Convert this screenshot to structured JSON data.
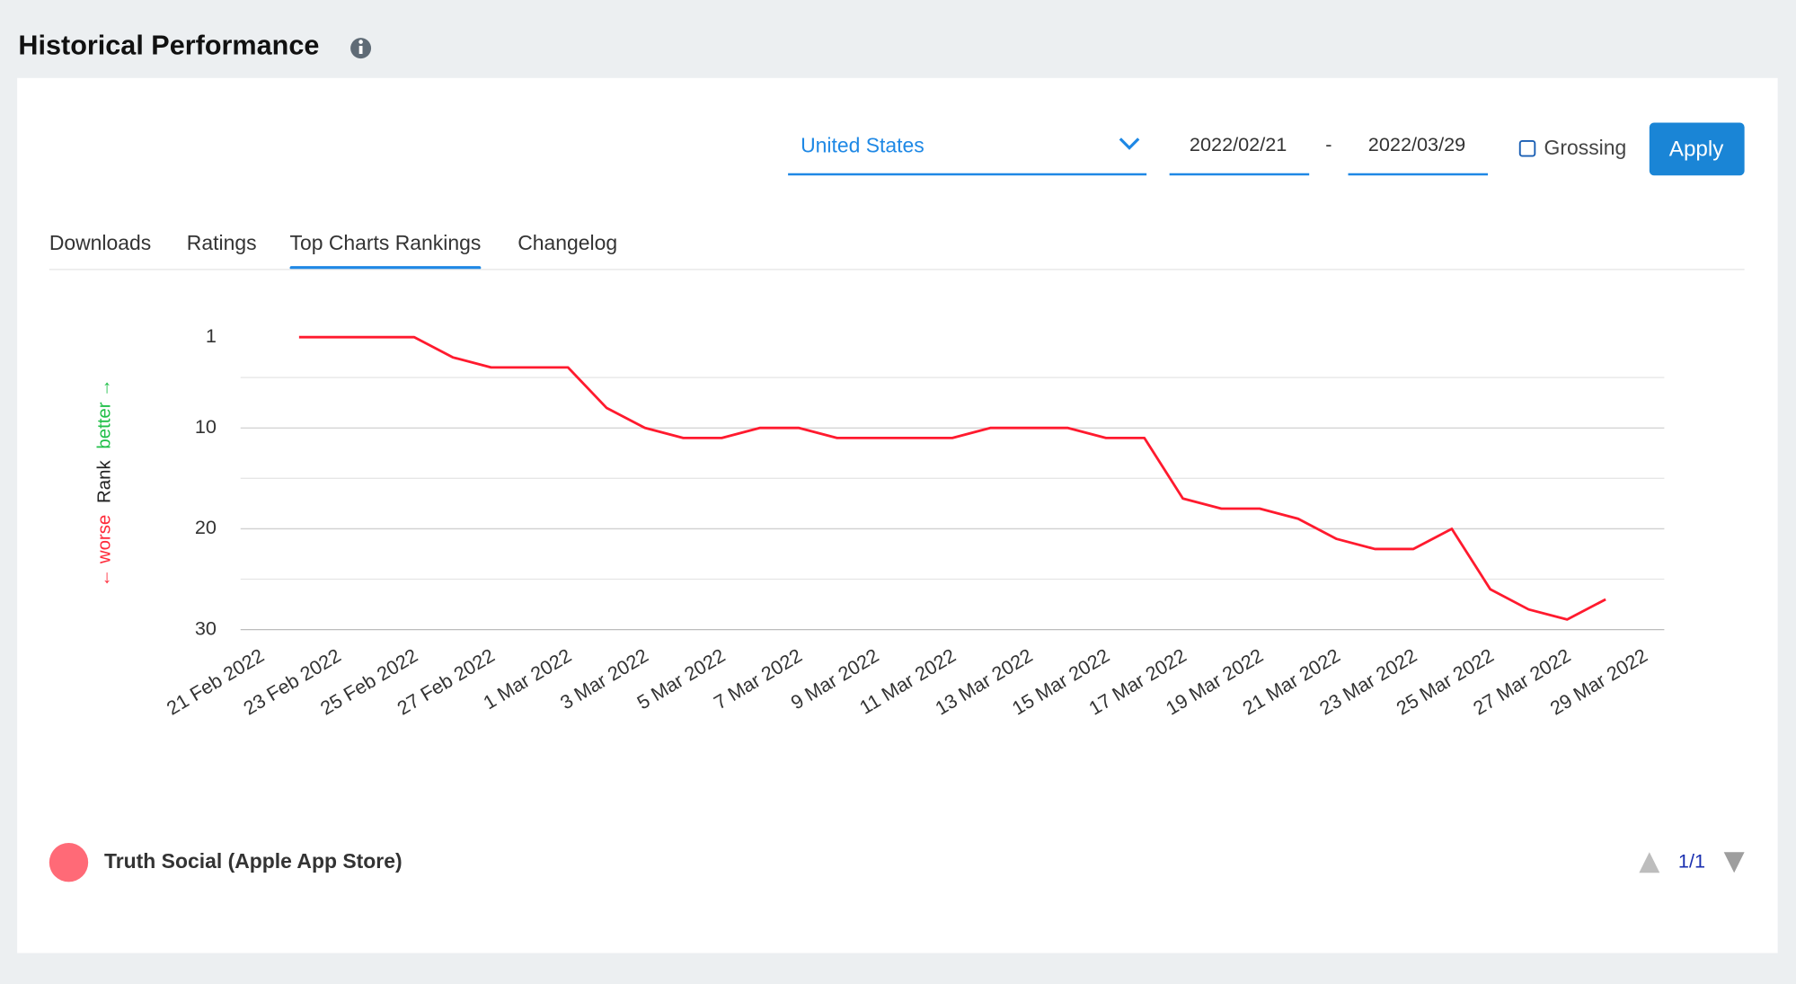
{
  "header": {
    "title": "Historical Performance"
  },
  "controls": {
    "country": "United States",
    "start_date": "2022/02/21",
    "date_separator": "-",
    "end_date": "2022/03/29",
    "grossing": "Grossing",
    "apply": "Apply"
  },
  "tabs": [
    "Downloads",
    "Ratings",
    "Top Charts Rankings",
    "Changelog"
  ],
  "active_tab": 2,
  "chart_data": {
    "type": "line",
    "y_label": {
      "worse": "← worse",
      "rank": "Rank",
      "better": "better →"
    },
    "categories": [
      "21 Feb 2022",
      null,
      "23 Feb 2022",
      null,
      "25 Feb 2022",
      null,
      "27 Feb 2022",
      null,
      "1 Mar 2022",
      null,
      "3 Mar 2022",
      null,
      "5 Mar 2022",
      null,
      "7 Mar 2022",
      null,
      "9 Mar 2022",
      null,
      "11 Mar 2022",
      null,
      "13 Mar 2022",
      null,
      "15 Mar 2022",
      null,
      "17 Mar 2022",
      null,
      "19 Mar 2022",
      null,
      "21 Mar 2022",
      null,
      "23 Mar 2022",
      null,
      "25 Mar 2022",
      null,
      "27 Mar 2022",
      null,
      "29 Mar 2022"
    ],
    "series": [
      {
        "name": "Truth Social (Apple App Store)",
        "color": "#ff1a2e",
        "values": [
          null,
          1,
          1,
          1,
          1,
          3,
          4,
          4,
          4,
          8,
          10,
          11,
          11,
          10,
          10,
          11,
          11,
          11,
          11,
          10,
          10,
          10,
          11,
          11,
          17,
          18,
          18,
          19,
          21,
          22,
          22,
          20,
          26,
          28,
          29,
          27,
          null
        ]
      }
    ],
    "ylim": [
      30,
      1
    ],
    "yticks": [
      1,
      10,
      20,
      30
    ],
    "minor_gridlines": [
      5,
      15,
      25
    ],
    "grid": true,
    "pagination": "1/1"
  }
}
